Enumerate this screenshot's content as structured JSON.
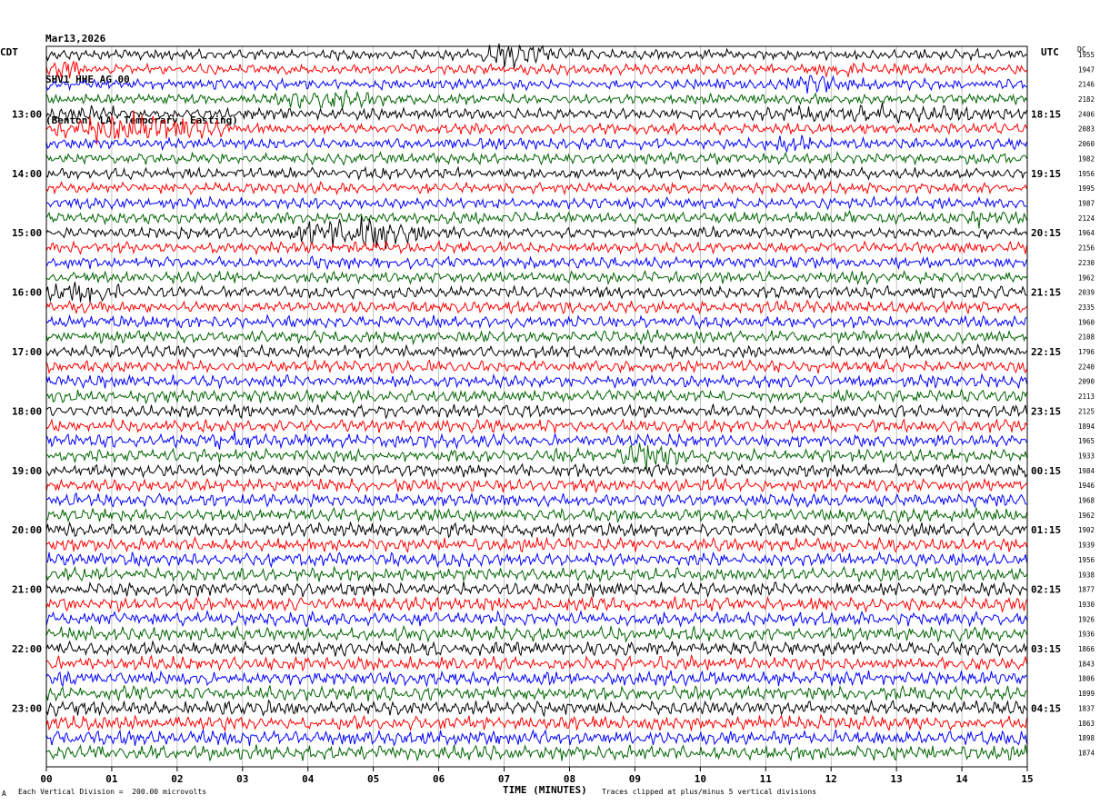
{
  "header": {
    "date": "Mar13,2026",
    "station": "SHV1 HHE AG 00",
    "location": "(Benton, LA, Temporary, Easting)"
  },
  "labels": {
    "left_tz": "CDT",
    "right_tz": "UTC",
    "dc": "DC",
    "xlabel": "TIME (MINUTES)",
    "scale_note": "Each Vertical Division =  200.00 microvolts",
    "clip_note": "Traces clipped at plus/minus 5 vertical divisions",
    "corner_mark": "A"
  },
  "chart_data": {
    "type": "line",
    "title": "SHV1 HHE AG 00",
    "xlabel": "TIME (MINUTES)",
    "xlim": [
      0,
      15
    ],
    "x_ticks": [
      "00",
      "01",
      "02",
      "03",
      "04",
      "05",
      "06",
      "07",
      "08",
      "09",
      "10",
      "11",
      "12",
      "13",
      "14",
      "15"
    ],
    "trace_minutes": 15,
    "trace_count": 48,
    "trace_colors": [
      "#000000",
      "#ff0000",
      "#0000ff",
      "#006400"
    ],
    "left_hour_labels": [
      {
        "trace": 4,
        "label": "13:00"
      },
      {
        "trace": 8,
        "label": "14:00"
      },
      {
        "trace": 12,
        "label": "15:00"
      },
      {
        "trace": 16,
        "label": "16:00"
      },
      {
        "trace": 20,
        "label": "17:00"
      },
      {
        "trace": 24,
        "label": "18:00"
      },
      {
        "trace": 28,
        "label": "19:00"
      },
      {
        "trace": 32,
        "label": "20:00"
      },
      {
        "trace": 36,
        "label": "21:00"
      },
      {
        "trace": 40,
        "label": "22:00"
      },
      {
        "trace": 44,
        "label": "23:00"
      }
    ],
    "right_hour_labels": [
      {
        "trace": 4,
        "label": "18:15"
      },
      {
        "trace": 8,
        "label": "19:15"
      },
      {
        "trace": 12,
        "label": "20:15"
      },
      {
        "trace": 16,
        "label": "21:15"
      },
      {
        "trace": 20,
        "label": "22:15"
      },
      {
        "trace": 24,
        "label": "23:15"
      },
      {
        "trace": 28,
        "label": "00:15"
      },
      {
        "trace": 32,
        "label": "01:15"
      },
      {
        "trace": 36,
        "label": "02:15"
      },
      {
        "trace": 40,
        "label": "03:15"
      },
      {
        "trace": 44,
        "label": "04:15"
      }
    ],
    "dc_offsets": [
      1955,
      1947,
      2146,
      2182,
      2406,
      2083,
      2060,
      1982,
      1956,
      1995,
      1987,
      2124,
      1964,
      2156,
      2230,
      1962,
      2039,
      2335,
      1960,
      2108,
      1796,
      2240,
      2090,
      2113,
      2125,
      1894,
      1965,
      1933,
      1984,
      1946,
      1968,
      1962,
      1902,
      1939,
      1956,
      1938,
      1877,
      1930,
      1926,
      1936,
      1866,
      1843,
      1806,
      1899,
      1837,
      1863,
      1898,
      1874
    ],
    "events": [
      {
        "trace": 0,
        "start_min": 6.5,
        "end_min": 7.9,
        "amp": 2.2
      },
      {
        "trace": 1,
        "start_min": 0.0,
        "end_min": 0.6,
        "amp": 2.0
      },
      {
        "trace": 1,
        "start_min": 11.5,
        "end_min": 12.8,
        "amp": 1.6
      },
      {
        "trace": 2,
        "start_min": 10.8,
        "end_min": 12.6,
        "amp": 1.8
      },
      {
        "trace": 3,
        "start_min": 3.5,
        "end_min": 5.2,
        "amp": 2.0
      },
      {
        "trace": 4,
        "start_min": 0.0,
        "end_min": 1.5,
        "amp": 1.6
      },
      {
        "trace": 4,
        "start_min": 10.5,
        "end_min": 15.0,
        "amp": 1.7
      },
      {
        "trace": 5,
        "start_min": 0.0,
        "end_min": 2.8,
        "amp": 3.0
      },
      {
        "trace": 6,
        "start_min": 10.8,
        "end_min": 12.0,
        "amp": 1.5
      },
      {
        "trace": 11,
        "start_min": 12.0,
        "end_min": 12.5,
        "amp": 1.5
      },
      {
        "trace": 11,
        "start_min": 13.8,
        "end_min": 15.0,
        "amp": 1.9
      },
      {
        "trace": 12,
        "start_min": 3.6,
        "end_min": 5.8,
        "amp": 3.2
      },
      {
        "trace": 14,
        "start_min": 11.0,
        "end_min": 11.2,
        "amp": 2.0
      },
      {
        "trace": 15,
        "start_min": 12.0,
        "end_min": 13.0,
        "amp": 1.4
      },
      {
        "trace": 16,
        "start_min": 0.0,
        "end_min": 1.2,
        "amp": 2.4
      },
      {
        "trace": 19,
        "start_min": 8.8,
        "end_min": 9.5,
        "amp": 1.5
      },
      {
        "trace": 22,
        "start_min": 13.0,
        "end_min": 14.0,
        "amp": 1.3
      },
      {
        "trace": 26,
        "start_min": 2.0,
        "end_min": 3.5,
        "amp": 1.6
      },
      {
        "trace": 27,
        "start_min": 8.6,
        "end_min": 9.8,
        "amp": 2.5
      },
      {
        "trace": 31,
        "start_min": 2.3,
        "end_min": 3.1,
        "amp": 1.3
      },
      {
        "trace": 31,
        "start_min": 4.8,
        "end_min": 5.3,
        "amp": 1.3
      }
    ]
  }
}
